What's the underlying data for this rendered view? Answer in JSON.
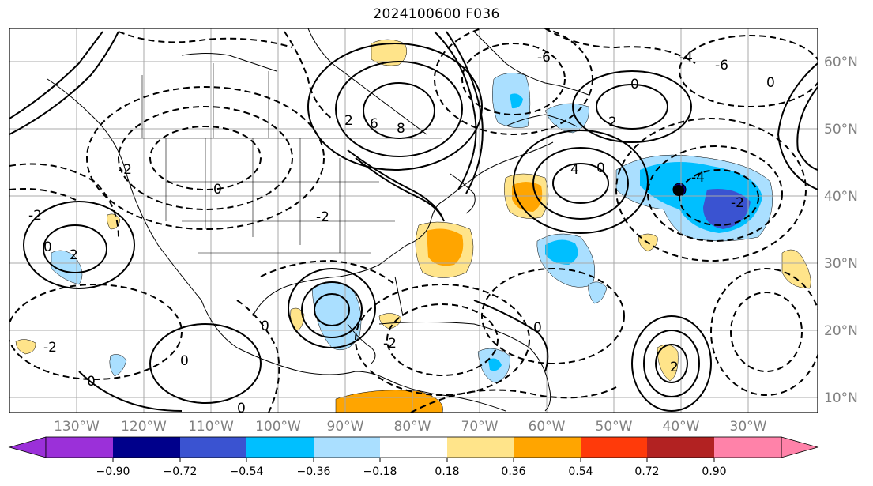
{
  "title": "2024100600 F036",
  "map": {
    "lon_labels": [
      "130°W",
      "120°W",
      "110°W",
      "100°W",
      "90°W",
      "80°W",
      "70°W",
      "60°W",
      "50°W",
      "40°W",
      "30°W"
    ],
    "lat_labels": [
      "60°N",
      "50°N",
      "40°N",
      "30°N",
      "20°N",
      "10°N"
    ],
    "contour_labels": [
      "0",
      "2",
      "4",
      "6",
      "8",
      "-2",
      "-4",
      "-6"
    ]
  },
  "colorbar": {
    "ticks": [
      "−0.90",
      "−0.72",
      "−0.54",
      "−0.36",
      "−0.18",
      "0.18",
      "0.36",
      "0.54",
      "0.72",
      "0.90"
    ],
    "colors": {
      "under": "#9b30d9",
      "bins": [
        "#00008b",
        "#3a53d1",
        "#00bfff",
        "#aadfff",
        "#ffffff",
        "#ffe48a",
        "#ffa500",
        "#ff3a0a",
        "#b22222",
        "#ff82a9"
      ],
      "over": "#ff82a9"
    }
  },
  "colors": {
    "grid": "#a8a8a8",
    "lines": "#000000"
  }
}
